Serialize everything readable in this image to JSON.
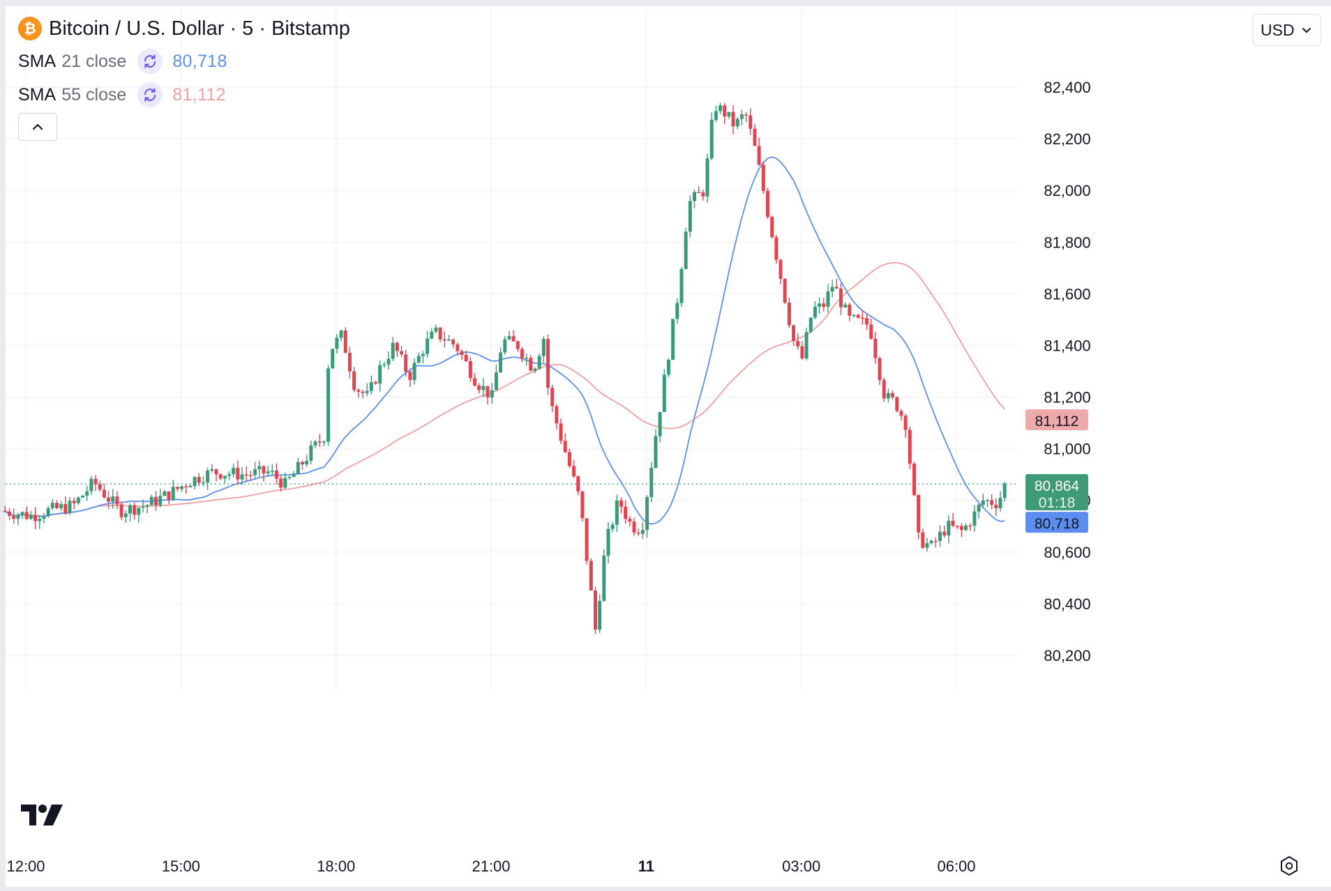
{
  "header": {
    "symbol_title": "Bitcoin / U.S. Dollar · 5 · Bitstamp",
    "currency": "USD",
    "logo_icon": "bitcoin-icon",
    "logo_glyph": "₿"
  },
  "indicators": [
    {
      "name": "SMA",
      "params": "21 close",
      "value": "80,718",
      "color": "#5b8ef0",
      "icon": "sync-icon"
    },
    {
      "name": "SMA",
      "params": "55 close",
      "value": "81,112",
      "color": "#eea0a0",
      "icon": "sync-icon"
    }
  ],
  "price_labels": {
    "last_price": "80,864",
    "countdown": "01:18",
    "sma21": "80,718",
    "sma55": "81,112"
  },
  "colors": {
    "up": "#26a69a",
    "down": "#ef5350",
    "up_body": "#3a9a78",
    "down_body": "#e04450",
    "sma21": "#5b8ef0",
    "sma55": "#eea0a0",
    "last_price_bg": "#3f9a76",
    "sma21_bg": "#5b8ef0",
    "sma55_bg": "#eeaaaa",
    "grid": "#f0f3fa"
  },
  "chart_data": {
    "type": "candlestick",
    "title": "Bitcoin / U.S. Dollar · 5 · Bitstamp",
    "interval_minutes": 5,
    "ylim": [
      80100,
      82500
    ],
    "y_ticks": [
      80200,
      80400,
      80600,
      80800,
      81000,
      81200,
      81400,
      81600,
      81800,
      82000,
      82200,
      82400
    ],
    "y_tick_labels": [
      "80,200",
      "80,400",
      "80,600",
      "80,800",
      "81,000",
      "81,200",
      "81,400",
      "81,600",
      "81,800",
      "82,000",
      "82,200",
      "82,400"
    ],
    "x_tick_labels": [
      "12:00",
      "15:00",
      "18:00",
      "21:00",
      "11",
      "03:00",
      "06:00"
    ],
    "x_tick_hours": [
      12,
      15,
      18,
      21,
      24,
      27,
      30
    ],
    "bold_x_tick": "11",
    "x_range_hours": [
      11.6,
      31.2
    ],
    "last_price": 80864,
    "grid": true,
    "candle_keypoints": [
      [
        11.6,
        80760
      ],
      [
        12.2,
        80740
      ],
      [
        12.5,
        80760
      ],
      [
        13.0,
        80780
      ],
      [
        13.4,
        80870
      ],
      [
        13.9,
        80760
      ],
      [
        14.4,
        80780
      ],
      [
        14.9,
        80830
      ],
      [
        15.3,
        80880
      ],
      [
        15.7,
        80910
      ],
      [
        16.3,
        80900
      ],
      [
        16.8,
        80910
      ],
      [
        17.1,
        80860
      ],
      [
        17.3,
        80910
      ],
      [
        17.6,
        80990
      ],
      [
        17.85,
        81050
      ],
      [
        17.95,
        81380
      ],
      [
        18.2,
        81440
      ],
      [
        18.45,
        81240
      ],
      [
        18.7,
        81200
      ],
      [
        18.9,
        81300
      ],
      [
        19.2,
        81400
      ],
      [
        19.5,
        81280
      ],
      [
        19.8,
        81400
      ],
      [
        20.0,
        81450
      ],
      [
        20.4,
        81400
      ],
      [
        20.8,
        81260
      ],
      [
        21.1,
        81200
      ],
      [
        21.3,
        81420
      ],
      [
        21.6,
        81400
      ],
      [
        21.9,
        81310
      ],
      [
        22.1,
        81430
      ],
      [
        22.2,
        81200
      ],
      [
        22.5,
        81000
      ],
      [
        22.8,
        80800
      ],
      [
        23.1,
        80300
      ],
      [
        23.3,
        80630
      ],
      [
        23.55,
        80800
      ],
      [
        23.8,
        80700
      ],
      [
        24.0,
        80690
      ],
      [
        24.3,
        81100
      ],
      [
        24.7,
        81600
      ],
      [
        24.9,
        81950
      ],
      [
        25.2,
        82000
      ],
      [
        25.4,
        82330
      ],
      [
        25.6,
        82300
      ],
      [
        25.8,
        82250
      ],
      [
        26.0,
        82300
      ],
      [
        26.2,
        82150
      ],
      [
        26.5,
        81850
      ],
      [
        26.7,
        81650
      ],
      [
        26.95,
        81400
      ],
      [
        27.1,
        81350
      ],
      [
        27.3,
        81540
      ],
      [
        27.5,
        81550
      ],
      [
        27.7,
        81640
      ],
      [
        28.0,
        81500
      ],
      [
        28.4,
        81480
      ],
      [
        28.7,
        81200
      ],
      [
        28.9,
        81180
      ],
      [
        29.1,
        81100
      ],
      [
        29.35,
        80650
      ],
      [
        29.6,
        80620
      ],
      [
        29.9,
        80700
      ],
      [
        30.2,
        80680
      ],
      [
        30.45,
        80750
      ],
      [
        30.6,
        80800
      ],
      [
        30.9,
        80790
      ],
      [
        31.0,
        80864
      ]
    ],
    "series": [
      {
        "name": "SMA 21 close",
        "last_value": 80718
      },
      {
        "name": "SMA 55 close",
        "last_value": 81112
      }
    ]
  }
}
